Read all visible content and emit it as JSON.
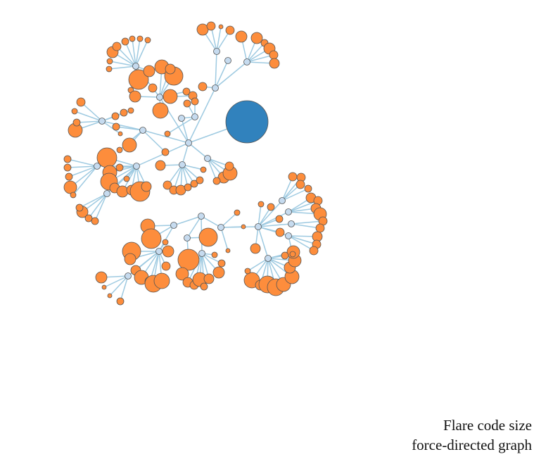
{
  "caption": {
    "line1": "Flare code size",
    "line2": "force-directed graph"
  },
  "colors": {
    "background": "#ffffff",
    "link": "#9ecae1",
    "collapsed_node": "#3182bd",
    "internal_node": "#c6dbef",
    "leaf_node": "#fd8d3c",
    "node_stroke": "#555555"
  }
}
